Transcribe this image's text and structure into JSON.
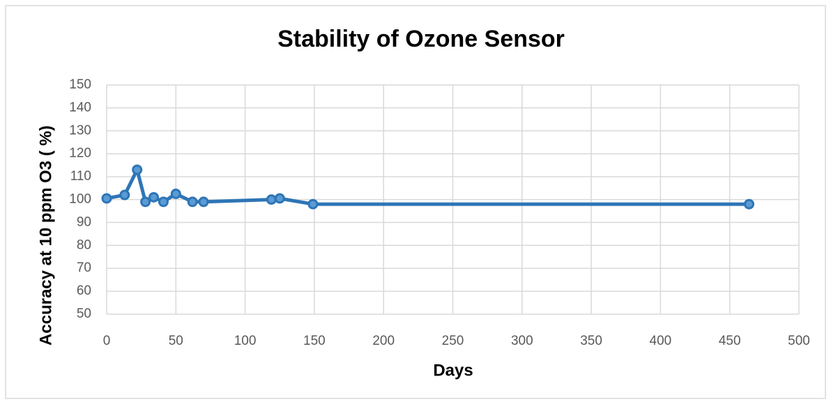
{
  "chart_data": {
    "type": "line",
    "title": "Stability of Ozone Sensor",
    "x_label": "Days",
    "y_label": "Accuracy at 10 ppm O3 ( %)",
    "x": [
      0,
      13,
      22,
      28,
      34,
      41,
      50,
      62,
      70,
      119,
      125,
      149,
      464
    ],
    "series": [
      {
        "name": "Accuracy",
        "color": "#2e75b6",
        "values": [
          100.5,
          102,
          113,
          99,
          101,
          99,
          102.5,
          99,
          99,
          100,
          100.5,
          98,
          98
        ]
      }
    ],
    "xlim": [
      0,
      500
    ],
    "xticks": [
      0,
      50,
      100,
      150,
      200,
      250,
      300,
      350,
      400,
      450,
      500
    ],
    "ylim": [
      50,
      150
    ],
    "yticks": [
      50,
      60,
      70,
      80,
      90,
      100,
      110,
      120,
      130,
      140,
      150
    ],
    "grid": true
  }
}
